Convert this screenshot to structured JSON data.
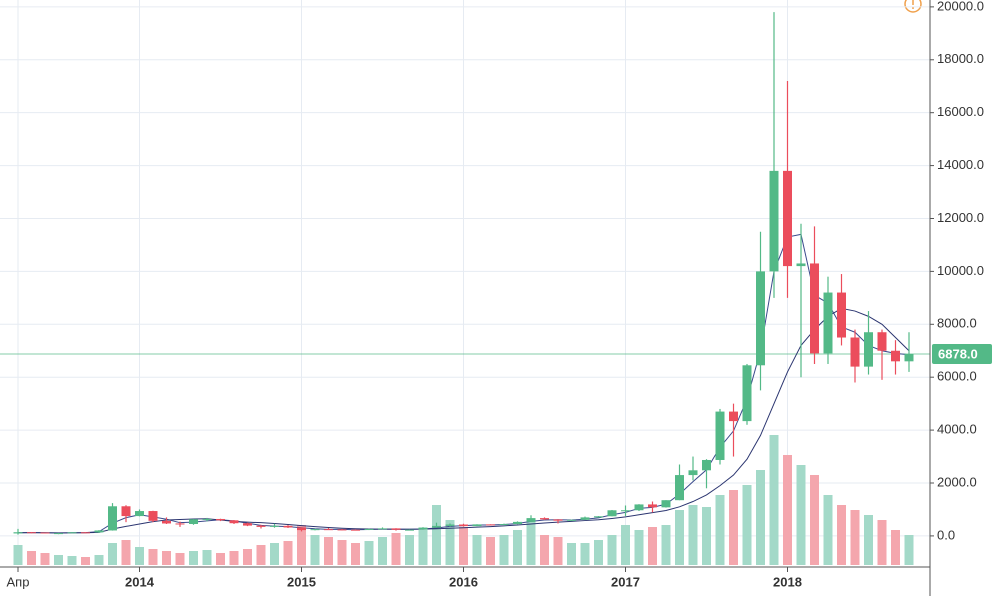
{
  "chart_data": {
    "type": "candlestick",
    "categories": [
      "Апр",
      null,
      null,
      null,
      null,
      null,
      null,
      null,
      null,
      "2014",
      null,
      null,
      null,
      null,
      null,
      null,
      null,
      null,
      null,
      null,
      null,
      "2015",
      null,
      null,
      null,
      null,
      null,
      null,
      null,
      null,
      null,
      null,
      null,
      "2016",
      null,
      null,
      null,
      null,
      null,
      null,
      null,
      null,
      null,
      null,
      null,
      "2017",
      null,
      null,
      null,
      null,
      null,
      null,
      null,
      null,
      null,
      null,
      null,
      "2018",
      null,
      null,
      null,
      null,
      null,
      null,
      null,
      null,
      null
    ],
    "open": [
      93,
      139,
      129,
      97,
      106,
      136,
      133,
      206,
      1120,
      750,
      940,
      570,
      470,
      450,
      630,
      640,
      590,
      480,
      390,
      340,
      380,
      320,
      220,
      255,
      245,
      235,
      230,
      262,
      285,
      230,
      236,
      315,
      378,
      430,
      370,
      436,
      416,
      448,
      530,
      673,
      624,
      575,
      608,
      700,
      742,
      968,
      970,
      1190,
      1080,
      1350,
      2300,
      2480,
      2870,
      4700,
      4340,
      6450,
      10000,
      13800,
      10200,
      10300,
      6900,
      9200,
      7500,
      6400,
      7700,
      7000,
      6600
    ],
    "high": [
      266,
      145,
      130,
      111,
      139,
      145,
      220,
      1240,
      1160,
      1000,
      950,
      700,
      540,
      630,
      680,
      650,
      600,
      500,
      420,
      460,
      410,
      320,
      270,
      300,
      260,
      245,
      270,
      320,
      290,
      245,
      330,
      500,
      470,
      460,
      440,
      440,
      465,
      550,
      780,
      700,
      630,
      620,
      730,
      750,
      980,
      1150,
      1200,
      1300,
      1350,
      2700,
      3000,
      2900,
      4800,
      5000,
      6500,
      11500,
      19800,
      17200,
      11800,
      11700,
      9800,
      9900,
      7800,
      8500,
      7800,
      7400,
      7700
    ],
    "low": [
      50,
      100,
      90,
      65,
      100,
      120,
      110,
      200,
      520,
      740,
      520,
      450,
      340,
      420,
      550,
      560,
      450,
      370,
      280,
      310,
      300,
      170,
      210,
      240,
      210,
      225,
      220,
      250,
      200,
      225,
      235,
      310,
      350,
      350,
      370,
      400,
      410,
      440,
      530,
      600,
      470,
      570,
      600,
      690,
      740,
      750,
      940,
      890,
      1070,
      1350,
      2100,
      1800,
      2700,
      3000,
      4200,
      5500,
      9000,
      9000,
      6000,
      6500,
      6500,
      7200,
      5800,
      6100,
      5900,
      6100,
      6200
    ],
    "close": [
      139,
      129,
      97,
      106,
      136,
      133,
      206,
      1120,
      750,
      940,
      570,
      470,
      450,
      630,
      640,
      590,
      480,
      390,
      340,
      380,
      320,
      220,
      255,
      245,
      235,
      230,
      262,
      285,
      230,
      236,
      315,
      378,
      430,
      370,
      436,
      416,
      448,
      530,
      673,
      624,
      575,
      608,
      700,
      742,
      968,
      970,
      1190,
      1080,
      1350,
      2300,
      2480,
      2870,
      4700,
      4340,
      6450,
      10000,
      13800,
      10200,
      10300,
      6900,
      9200,
      7500,
      6400,
      7700,
      7000,
      6600,
      6878
    ],
    "volume": [
      20,
      14,
      12,
      10,
      9,
      8,
      10,
      22,
      25,
      18,
      16,
      14,
      12,
      14,
      15,
      12,
      14,
      16,
      20,
      22,
      24,
      40,
      30,
      28,
      25,
      22,
      24,
      28,
      32,
      30,
      35,
      60,
      45,
      38,
      30,
      28,
      30,
      35,
      45,
      30,
      28,
      22,
      22,
      25,
      30,
      40,
      35,
      38,
      40,
      55,
      60,
      58,
      70,
      75,
      80,
      95,
      130,
      110,
      100,
      90,
      70,
      60,
      55,
      50,
      45,
      35,
      30
    ],
    "up_color": "#53b987",
    "down_color": "#eb4d5c",
    "volume_up_color": "#a3d9c8",
    "volume_down_color": "#f4a6ad",
    "lines": [
      {
        "color": "#3b4a8c",
        "values": [
          120,
          125,
          120,
          110,
          115,
          125,
          160,
          480,
          690,
          800,
          720,
          630,
          500,
          520,
          570,
          610,
          570,
          480,
          400,
          370,
          350,
          310,
          270,
          245,
          245,
          235,
          240,
          255,
          255,
          250,
          260,
          300,
          360,
          390,
          410,
          410,
          430,
          470,
          550,
          600,
          610,
          600,
          630,
          680,
          800,
          890,
          1040,
          1080,
          1200,
          1580,
          2050,
          2500,
          3350,
          3970,
          5170,
          7000,
          10000,
          11300,
          11400,
          9100,
          8800,
          7900,
          7700,
          7200,
          7000,
          6900,
          6850
        ]
      },
      {
        "color": "#2b3570",
        "values": [
          120,
          122,
          118,
          115,
          118,
          120,
          135,
          260,
          360,
          450,
          540,
          600,
          620,
          640,
          650,
          600,
          550,
          520,
          500,
          470,
          430,
          390,
          350,
          320,
          290,
          270,
          260,
          255,
          250,
          250,
          255,
          270,
          290,
          310,
          330,
          350,
          380,
          410,
          450,
          490,
          520,
          550,
          580,
          610,
          660,
          720,
          800,
          880,
          960,
          1100,
          1300,
          1550,
          1900,
          2300,
          2900,
          3800,
          5000,
          6200,
          7200,
          7800,
          8300,
          8600,
          8500,
          8300,
          8000,
          7500,
          7000
        ]
      }
    ],
    "ylim": [
      -1100,
      20260
    ],
    "yticks": [
      {
        "value": 0,
        "label": "0.0"
      },
      {
        "value": 2000,
        "label": "2000.0"
      },
      {
        "value": 4000,
        "label": "4000.0"
      },
      {
        "value": 6000,
        "label": "6000.0"
      },
      {
        "value": 8000,
        "label": "8000.0"
      },
      {
        "value": 10000,
        "label": "10000.0"
      },
      {
        "value": 12000,
        "label": "12000.0"
      },
      {
        "value": 14000,
        "label": "14000.0"
      },
      {
        "value": 16000,
        "label": "16000.0"
      },
      {
        "value": 18000,
        "label": "18000.0"
      },
      {
        "value": 20000,
        "label": "20000.0"
      }
    ],
    "last_price": 6878,
    "last_price_label": "6878.0",
    "last_price_color": "#53b987",
    "grid": true
  }
}
